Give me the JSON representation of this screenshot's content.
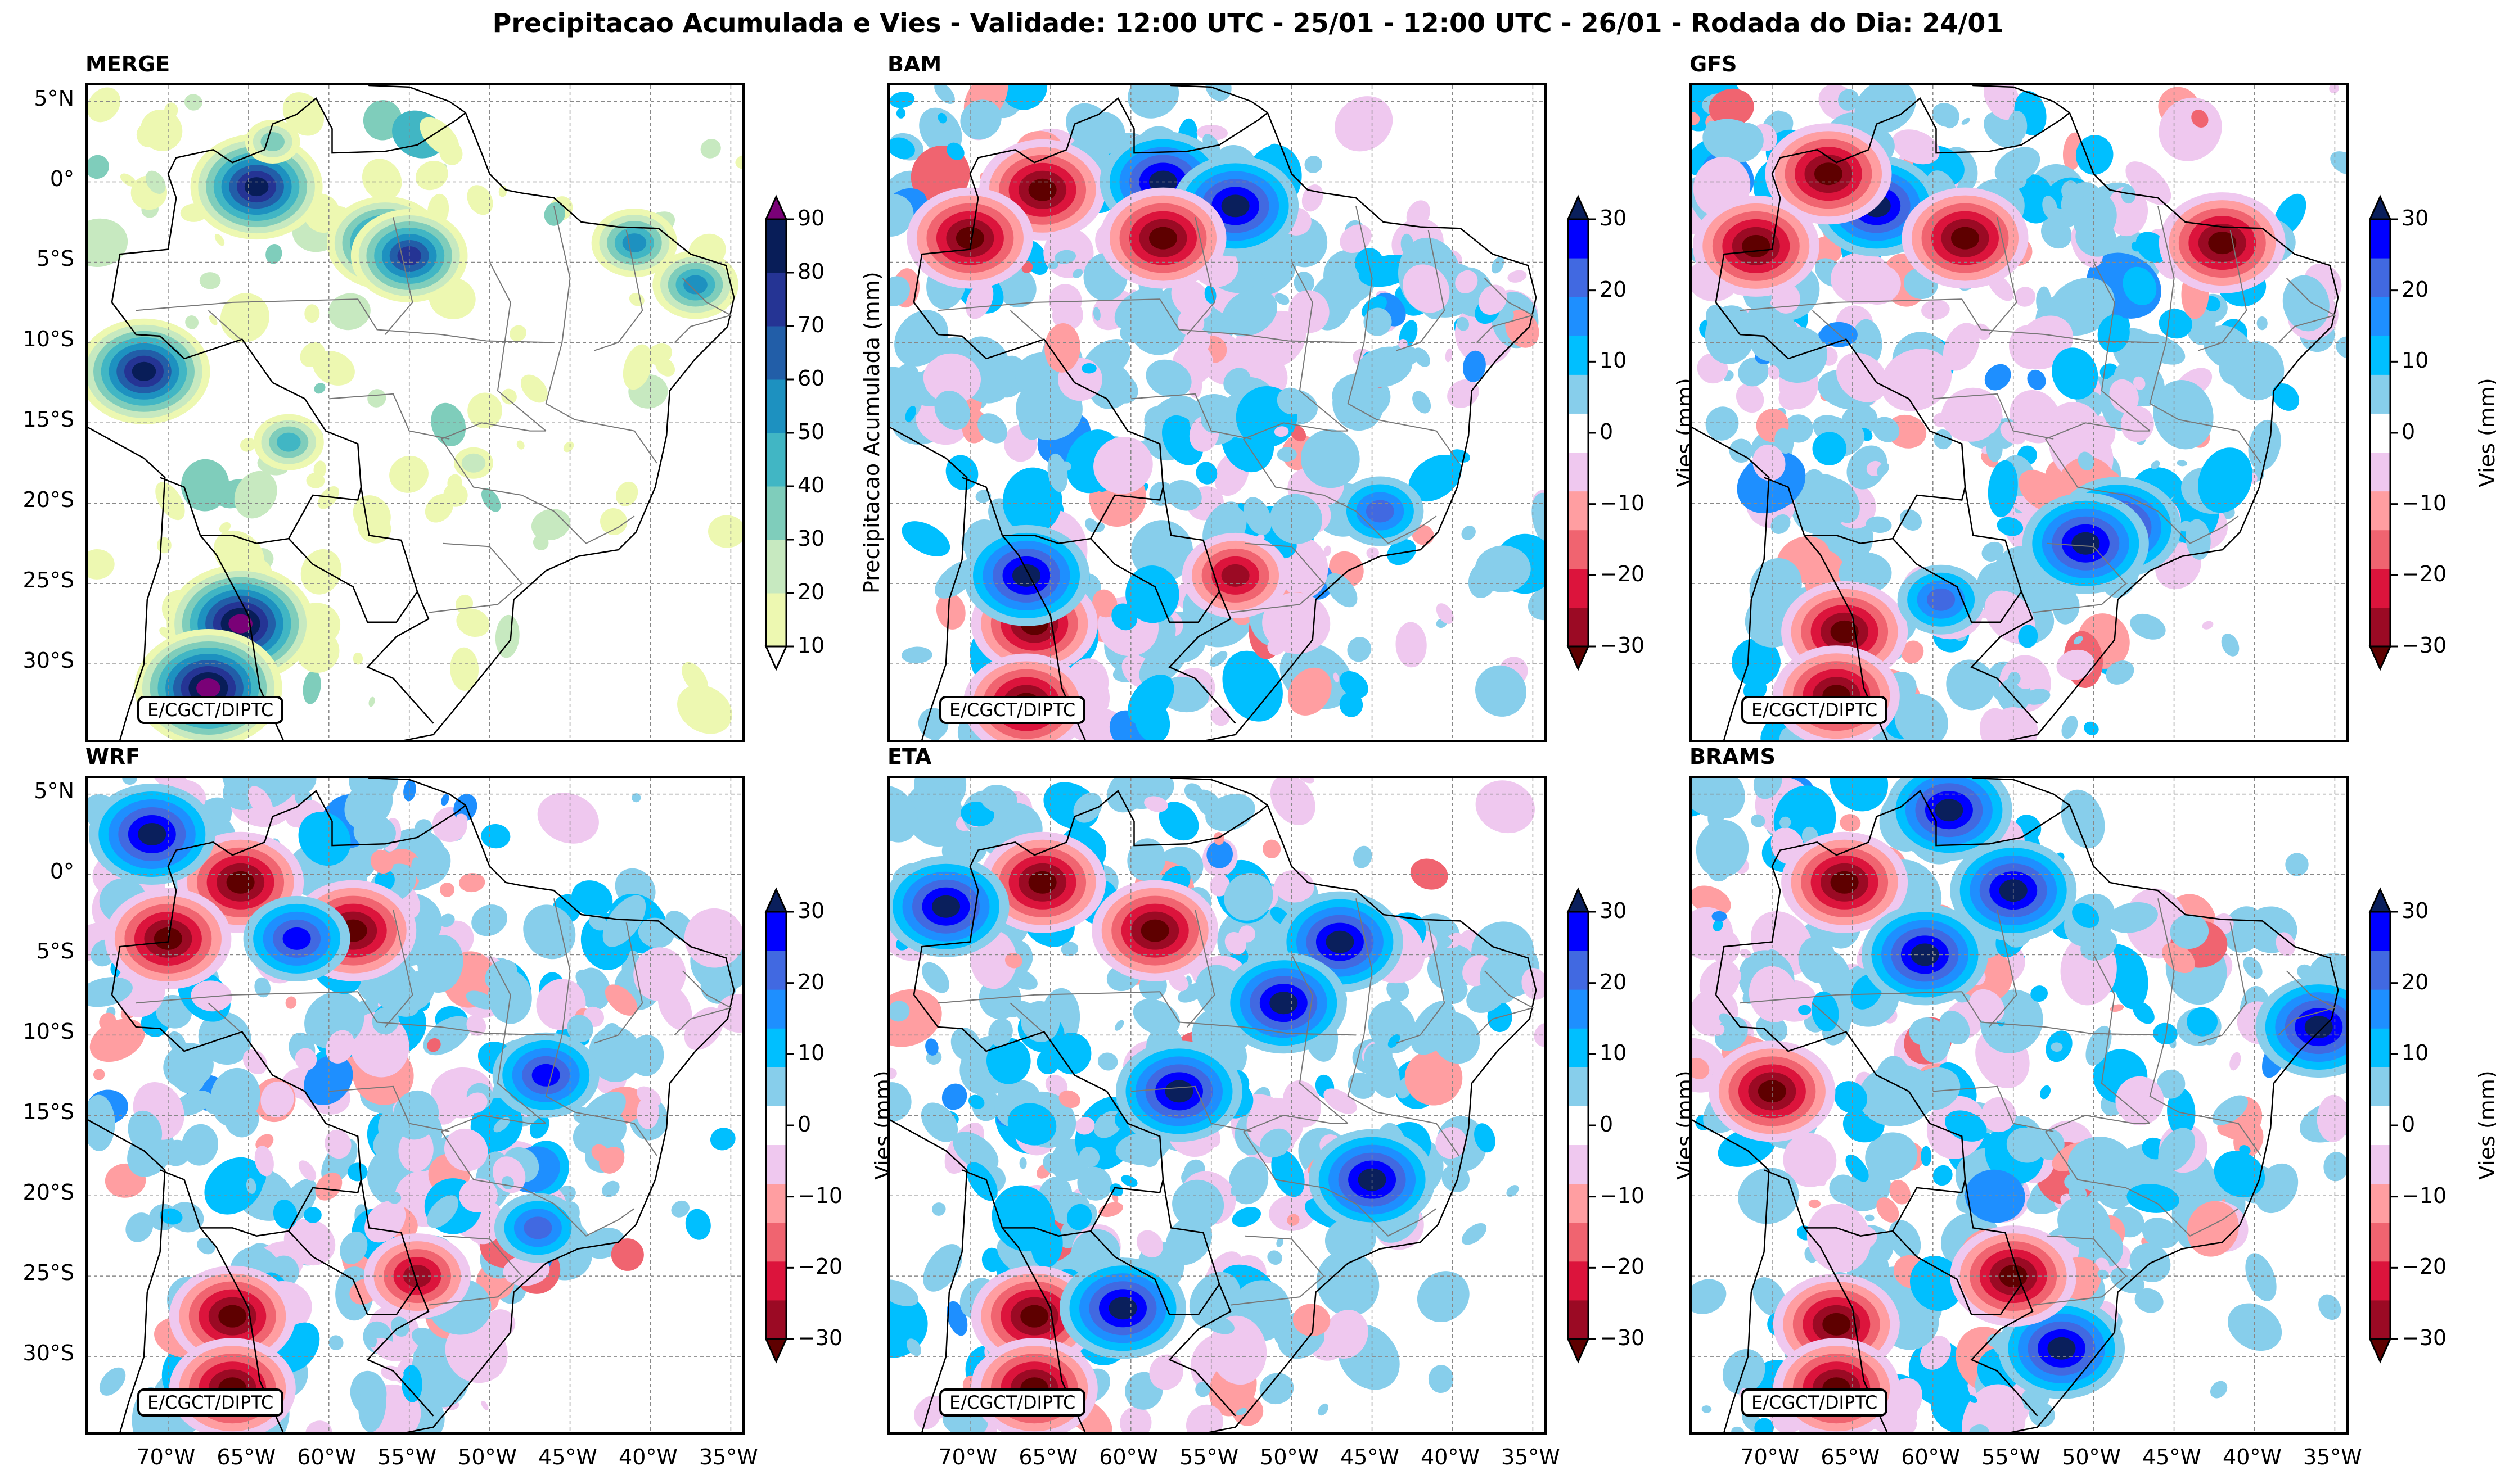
{
  "title": "Precipitacao Acumulada e Vies - Validade: 12:00 UTC - 25/01 - 12:00 UTC - 26/01 - Rodada do Dia: 24/01",
  "credit": "E/CGCT/DIPTC",
  "chart_data": [
    {
      "type": "heatmap",
      "name": "MERGE",
      "title": "MERGE",
      "variable": "Precipitacao Acumulada (mm)",
      "colorbar": {
        "label": "Precipitacao Acumulada (mm)",
        "levels": [
          10,
          20,
          30,
          40,
          50,
          60,
          70,
          80,
          90
        ],
        "colors": [
          "#edf8b1",
          "#c7e9c0",
          "#7fcdbb",
          "#41b6c4",
          "#1d91c0",
          "#225ea8",
          "#253494",
          "#081d58"
        ],
        "under_color": "#ffffff",
        "over_color": "#7a0177",
        "extend": "both"
      },
      "xlim": [
        -75,
        -34
      ],
      "ylim": [
        -35,
        6
      ],
      "xticks": [
        "70°W",
        "65°W",
        "60°W",
        "55°W",
        "50°W",
        "45°W",
        "40°W",
        "35°W"
      ],
      "yticks": [
        "5°N",
        "0°",
        "5°S",
        "10°S",
        "15°S",
        "20°S",
        "25°S",
        "30°S"
      ],
      "grid": true,
      "features": [
        {
          "lon": -64.5,
          "lat": -0.3,
          "value": 85
        },
        {
          "lon": -65.5,
          "lat": -27.5,
          "value": 90
        },
        {
          "lon": -67.5,
          "lat": -31.5,
          "value": 90
        },
        {
          "lon": -71.5,
          "lat": -11.8,
          "value": 80
        },
        {
          "lon": -56.5,
          "lat": -3.8,
          "value": 70
        },
        {
          "lon": -55.0,
          "lat": -4.6,
          "value": 70
        },
        {
          "lon": -41.0,
          "lat": -3.8,
          "value": 55
        },
        {
          "lon": -37.2,
          "lat": -6.4,
          "value": 55
        },
        {
          "lon": -62.5,
          "lat": -16.2,
          "value": 40
        },
        {
          "lon": -63.5,
          "lat": 2.5,
          "value": 30
        },
        {
          "lon": -51.0,
          "lat": -17.5,
          "value": 25
        }
      ]
    },
    {
      "type": "heatmap",
      "name": "BAM",
      "title": "BAM",
      "variable": "Vies (mm)",
      "colorbar": {
        "label": "Vies (mm)",
        "ticks": [
          -30,
          -20,
          -10,
          0,
          10,
          20,
          30
        ],
        "levels": [
          -30,
          -25,
          -20,
          -15,
          -10,
          -5,
          5,
          10,
          15,
          20,
          25,
          30
        ],
        "colors": [
          "#9b0a24",
          "#dc143c",
          "#f06470",
          "#ff9ea1",
          "#efc8ef",
          "#ffffff",
          "#87ceeb",
          "#00bfff",
          "#1e8fff",
          "#4169e1",
          "#0000ff"
        ],
        "under_color": "#5e0000",
        "over_color": "#0a1f5c",
        "extend": "both"
      },
      "features": [
        {
          "lon": -65.5,
          "lat": -0.5,
          "value": -30
        },
        {
          "lon": -58.0,
          "lat": 0.0,
          "value": 30
        },
        {
          "lon": -53.5,
          "lat": -1.5,
          "value": 30
        },
        {
          "lon": -66.0,
          "lat": -27.5,
          "value": -30
        },
        {
          "lon": -66.5,
          "lat": -32.5,
          "value": -30
        },
        {
          "lon": -66.5,
          "lat": -24.5,
          "value": 30
        },
        {
          "lon": -44.5,
          "lat": -20.5,
          "value": 20
        },
        {
          "lon": -53.5,
          "lat": -24.5,
          "value": -25
        },
        {
          "lon": -58.0,
          "lat": -3.5,
          "value": -30
        },
        {
          "lon": -70.0,
          "lat": -3.5,
          "value": -30
        }
      ]
    },
    {
      "type": "heatmap",
      "name": "GFS",
      "title": "GFS",
      "variable": "Vies (mm)",
      "colorbar": {
        "label": "Vies (mm)",
        "ticks": [
          -30,
          -20,
          -10,
          0,
          10,
          20,
          30
        ]
      },
      "features": [
        {
          "lon": -63.5,
          "lat": -1.5,
          "value": 30
        },
        {
          "lon": -66.5,
          "lat": 0.5,
          "value": -30
        },
        {
          "lon": -65.5,
          "lat": -28.0,
          "value": -30
        },
        {
          "lon": -66.0,
          "lat": -32.0,
          "value": -30
        },
        {
          "lon": -48.5,
          "lat": -21.5,
          "value": 30
        },
        {
          "lon": -50.5,
          "lat": -22.5,
          "value": 30
        },
        {
          "lon": -59.5,
          "lat": -26.0,
          "value": 20
        },
        {
          "lon": -58.0,
          "lat": -3.5,
          "value": -30
        },
        {
          "lon": -71.0,
          "lat": -4.0,
          "value": -30
        },
        {
          "lon": -42.0,
          "lat": -3.8,
          "value": -30
        }
      ]
    },
    {
      "type": "heatmap",
      "name": "WRF",
      "title": "WRF",
      "variable": "Vies (mm)",
      "colorbar": {
        "label": "Vies (mm)",
        "ticks": [
          -30,
          -20,
          -10,
          0,
          10,
          20,
          30
        ]
      },
      "features": [
        {
          "lon": -65.5,
          "lat": -0.5,
          "value": -30
        },
        {
          "lon": -71.0,
          "lat": 2.5,
          "value": 30
        },
        {
          "lon": -66.0,
          "lat": -27.5,
          "value": -30
        },
        {
          "lon": -66.0,
          "lat": -32.0,
          "value": -30
        },
        {
          "lon": -58.5,
          "lat": -3.5,
          "value": -30
        },
        {
          "lon": -62.0,
          "lat": -4.0,
          "value": 25
        },
        {
          "lon": -46.5,
          "lat": -12.5,
          "value": 25
        },
        {
          "lon": -47.0,
          "lat": -22.0,
          "value": 20
        },
        {
          "lon": -54.5,
          "lat": -25.0,
          "value": -25
        },
        {
          "lon": -70.0,
          "lat": -4.0,
          "value": -30
        }
      ]
    },
    {
      "type": "heatmap",
      "name": "ETA",
      "title": "ETA",
      "variable": "Vies (mm)",
      "colorbar": {
        "label": "Vies (mm)",
        "ticks": [
          -30,
          -20,
          -10,
          0,
          10,
          20,
          30
        ]
      },
      "features": [
        {
          "lon": -65.5,
          "lat": -0.5,
          "value": -30
        },
        {
          "lon": -71.5,
          "lat": -2.0,
          "value": 30
        },
        {
          "lon": -66.0,
          "lat": -27.5,
          "value": -30
        },
        {
          "lon": -66.0,
          "lat": -32.0,
          "value": -30
        },
        {
          "lon": -60.5,
          "lat": -27.0,
          "value": 30
        },
        {
          "lon": -57.0,
          "lat": -13.5,
          "value": 30
        },
        {
          "lon": -47.0,
          "lat": -4.2,
          "value": 30
        },
        {
          "lon": -50.5,
          "lat": -8.0,
          "value": 30
        },
        {
          "lon": -45.0,
          "lat": -19.0,
          "value": 30
        },
        {
          "lon": -58.5,
          "lat": -3.5,
          "value": -30
        }
      ]
    },
    {
      "type": "heatmap",
      "name": "BRAMS",
      "title": "BRAMS",
      "variable": "Vies (mm)",
      "colorbar": {
        "label": "Vies (mm)",
        "ticks": [
          -30,
          -20,
          -10,
          0,
          10,
          20,
          30
        ]
      },
      "features": [
        {
          "lon": -65.5,
          "lat": -0.5,
          "value": -30
        },
        {
          "lon": -59.0,
          "lat": 4.0,
          "value": 30
        },
        {
          "lon": -55.0,
          "lat": -1.0,
          "value": 30
        },
        {
          "lon": -60.5,
          "lat": -5.0,
          "value": 30
        },
        {
          "lon": -66.0,
          "lat": -28.0,
          "value": -30
        },
        {
          "lon": -66.0,
          "lat": -32.0,
          "value": -30
        },
        {
          "lon": -52.0,
          "lat": -29.5,
          "value": 30
        },
        {
          "lon": -36.0,
          "lat": -9.5,
          "value": 30
        },
        {
          "lon": -55.0,
          "lat": -25.0,
          "value": -30
        },
        {
          "lon": -70.0,
          "lat": -13.5,
          "value": -30
        }
      ]
    }
  ]
}
